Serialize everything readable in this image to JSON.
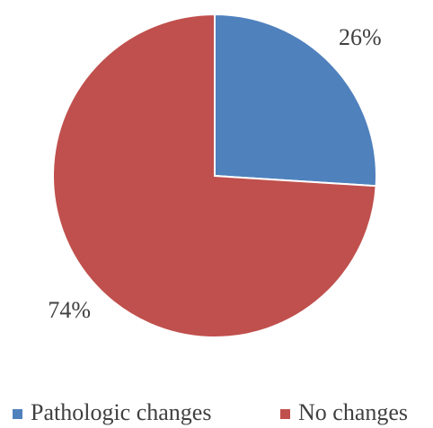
{
  "chart_data": {
    "type": "pie",
    "categories": [
      "Pathologic changes",
      "No changes"
    ],
    "values": [
      26,
      74
    ],
    "value_labels": [
      "26%",
      "74%"
    ],
    "colors": [
      "#4f81bd",
      "#c0504d"
    ],
    "legend": "bottom"
  }
}
